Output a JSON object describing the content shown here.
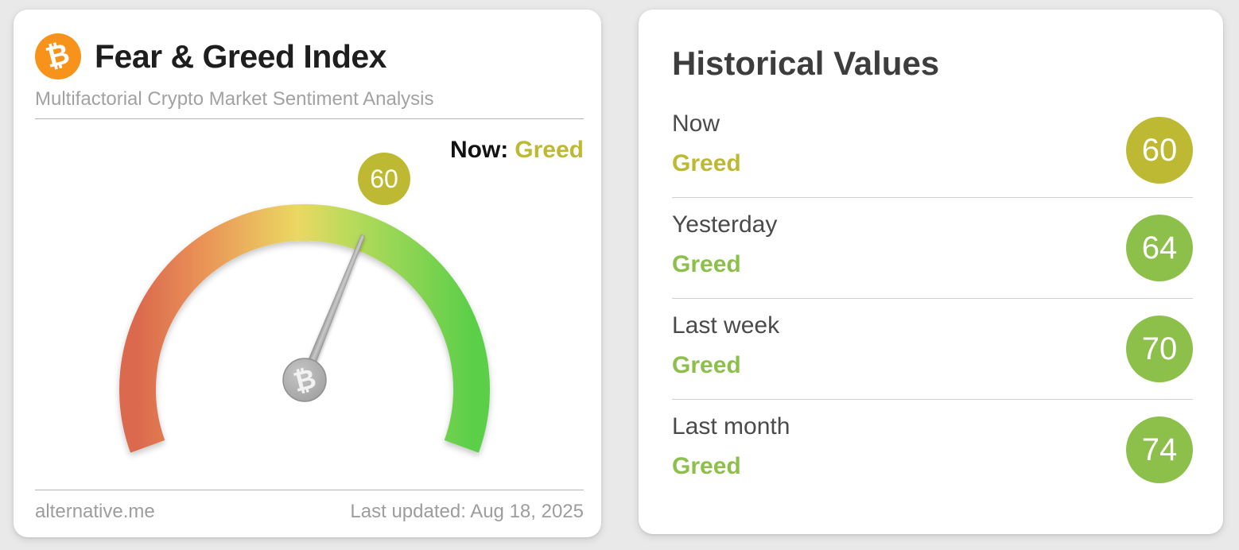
{
  "page": {
    "background": "#e9e9e9"
  },
  "fear_greed_card": {
    "title": "Fear & Greed Index",
    "subtitle": "Multifactorial Crypto Market Sentiment Analysis",
    "bitcoin_icon": {
      "symbol": "₿",
      "color": "#f7931a"
    },
    "now_label": "Now:",
    "now_value": "Greed",
    "now_value_color": "#beb932",
    "gauge": {
      "value": 60,
      "min": 0,
      "max": 100,
      "badge_value": "60",
      "badge_color": "#beb932",
      "needle_color": "#9a9a9a",
      "gradient": [
        "#db694e",
        "#ea9457",
        "#ebd863",
        "#b8da5b",
        "#5ccf4a"
      ]
    },
    "footer": {
      "source": "alternative.me",
      "last_updated": "Last updated: Aug 18, 2025"
    }
  },
  "historical_card": {
    "title": "Historical Values",
    "rows": [
      {
        "label": "Now",
        "classification": "Greed",
        "value": "60",
        "color": "#beb932"
      },
      {
        "label": "Yesterday",
        "classification": "Greed",
        "value": "64",
        "color": "#8cc04a"
      },
      {
        "label": "Last week",
        "classification": "Greed",
        "value": "70",
        "color": "#8cc04a"
      },
      {
        "label": "Last month",
        "classification": "Greed",
        "value": "74",
        "color": "#8cc04a"
      }
    ]
  },
  "chart_data": {
    "type": "gauge",
    "title": "Fear & Greed Index",
    "value": 60,
    "classification": "Greed",
    "range": [
      0,
      100
    ],
    "arc_sweep_degrees": 220,
    "color_scale": [
      "#db694e",
      "#ea9457",
      "#ebd863",
      "#b8da5b",
      "#5ccf4a"
    ],
    "historical": {
      "type": "table",
      "categories": [
        "Now",
        "Yesterday",
        "Last week",
        "Last month"
      ],
      "values": [
        60,
        64,
        70,
        74
      ],
      "classifications": [
        "Greed",
        "Greed",
        "Greed",
        "Greed"
      ]
    }
  }
}
